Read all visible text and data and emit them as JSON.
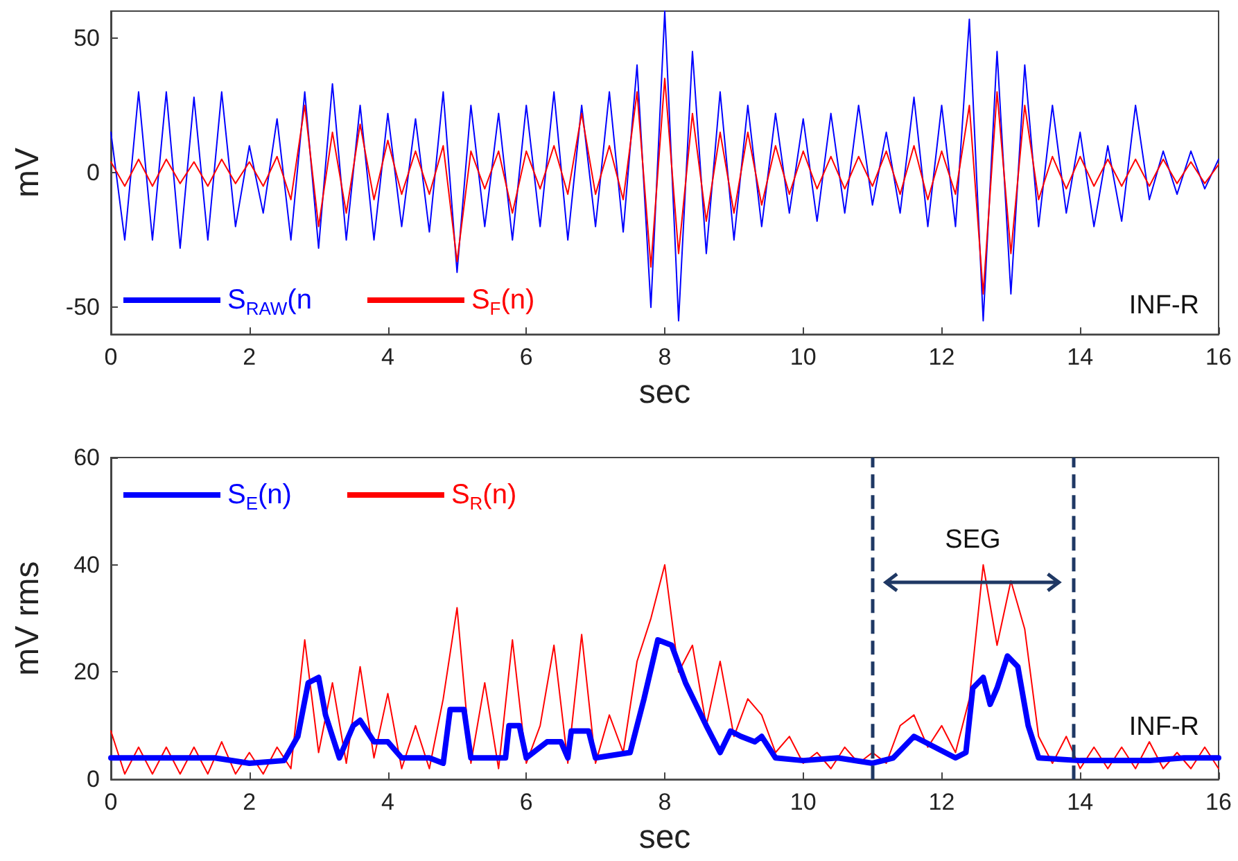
{
  "chart_data": [
    {
      "type": "line",
      "xlabel": "sec",
      "ylabel": "mV",
      "annotations": [
        "INF-R"
      ],
      "legend": "bottom left",
      "grid": false,
      "marker": "none",
      "line_style": "solid",
      "x": [
        0,
        0.2,
        0.4,
        0.6,
        0.8,
        1,
        1.2,
        1.4,
        1.6,
        1.8,
        2,
        2.2,
        2.4,
        2.6,
        2.8,
        3,
        3.2,
        3.4,
        3.6,
        3.8,
        4,
        4.2,
        4.4,
        4.6,
        4.8,
        5,
        5.2,
        5.4,
        5.6,
        5.8,
        6,
        6.2,
        6.4,
        6.6,
        6.8,
        7,
        7.2,
        7.4,
        7.6,
        7.8,
        8,
        8.2,
        8.4,
        8.6,
        8.8,
        9,
        9.2,
        9.4,
        9.6,
        9.8,
        10,
        10.2,
        10.4,
        10.6,
        10.8,
        11,
        11.2,
        11.4,
        11.6,
        11.8,
        12,
        12.2,
        12.4,
        12.6,
        12.8,
        13,
        13.2,
        13.4,
        13.6,
        13.8,
        14,
        14.2,
        14.4,
        14.6,
        14.8,
        15,
        15.2,
        15.4,
        15.6,
        15.8,
        16
      ],
      "xlim": [
        0,
        16
      ],
      "xticks": [
        0,
        2,
        4,
        6,
        8,
        10,
        12,
        14,
        16
      ],
      "ylim": [
        -60,
        60
      ],
      "yticks": [
        -50,
        0,
        50
      ],
      "series": [
        {
          "name": "S$_{RAW}$(n",
          "color": "#0000ff",
          "values": [
            15,
            -25,
            30,
            -25,
            30,
            -28,
            28,
            -25,
            30,
            -20,
            10,
            -15,
            20,
            -25,
            30,
            -28,
            33,
            -25,
            25,
            -25,
            22,
            -20,
            20,
            -22,
            30,
            -37,
            25,
            -20,
            22,
            -25,
            25,
            -20,
            30,
            -25,
            25,
            -20,
            30,
            -22,
            40,
            -50,
            60,
            -55,
            45,
            -30,
            30,
            -25,
            25,
            -20,
            22,
            -15,
            20,
            -18,
            22,
            -15,
            25,
            -12,
            15,
            -15,
            28,
            -20,
            25,
            -20,
            57,
            -55,
            45,
            -45,
            40,
            -20,
            25,
            -15,
            15,
            -20,
            10,
            -18,
            25,
            -10,
            8,
            -8,
            8,
            -6,
            5
          ]
        },
        {
          "name": "S$_{F}$(n)",
          "color": "#ff0000",
          "values": [
            4,
            -5,
            5,
            -5,
            5,
            -4,
            4,
            -5,
            5,
            -4,
            4,
            -5,
            6,
            -10,
            25,
            -20,
            15,
            -15,
            18,
            -10,
            12,
            -8,
            8,
            -8,
            10,
            -33,
            8,
            -6,
            8,
            -15,
            8,
            -6,
            10,
            -8,
            22,
            -8,
            10,
            -10,
            30,
            -35,
            35,
            -30,
            22,
            -18,
            15,
            -15,
            15,
            -12,
            10,
            -8,
            8,
            -6,
            6,
            -6,
            6,
            -5,
            8,
            -8,
            10,
            -10,
            8,
            -8,
            25,
            -45,
            30,
            -30,
            25,
            -10,
            6,
            -6,
            6,
            -5,
            5,
            -5,
            5,
            -5,
            5,
            -4,
            4,
            -4,
            3
          ]
        }
      ]
    },
    {
      "type": "line",
      "xlabel": "sec",
      "ylabel": "mV rms",
      "annotations": [
        "SEG",
        "INF-R"
      ],
      "legend": "top left",
      "grid": false,
      "marker": "none",
      "line_style": "solid",
      "x": [
        0,
        0.2,
        0.4,
        0.6,
        0.8,
        1,
        1.2,
        1.4,
        1.6,
        1.8,
        2,
        2.2,
        2.4,
        2.6,
        2.8,
        3,
        3.2,
        3.4,
        3.6,
        3.8,
        4,
        4.2,
        4.4,
        4.6,
        4.8,
        5,
        5.2,
        5.4,
        5.6,
        5.8,
        6,
        6.2,
        6.4,
        6.6,
        6.8,
        7,
        7.2,
        7.4,
        7.6,
        7.8,
        8,
        8.2,
        8.4,
        8.6,
        8.8,
        9,
        9.2,
        9.4,
        9.6,
        9.8,
        10,
        10.2,
        10.4,
        10.6,
        10.8,
        11,
        11.2,
        11.4,
        11.6,
        11.8,
        12,
        12.2,
        12.4,
        12.6,
        12.8,
        13,
        13.2,
        13.4,
        13.6,
        13.8,
        14,
        14.2,
        14.4,
        14.6,
        14.8,
        15,
        15.2,
        15.4,
        15.6,
        15.8,
        16
      ],
      "xlim": [
        0,
        16
      ],
      "xticks": [
        0,
        2,
        4,
        6,
        8,
        10,
        12,
        14,
        16
      ],
      "ylim": [
        0,
        60
      ],
      "yticks": [
        0,
        20,
        40,
        60
      ],
      "ref_lines": [
        {
          "axis": "x",
          "value": 11,
          "color": "#1f3864",
          "line_style": "dashed"
        },
        {
          "axis": "x",
          "value": 13.9,
          "color": "#1f3864",
          "line_style": "dashed"
        }
      ],
      "series": [
        {
          "name": "S$_{E}$(n)",
          "color": "#0000ff",
          "x": [
            0,
            1,
            1.5,
            2,
            2.5,
            2.7,
            2.85,
            3,
            3.1,
            3.3,
            3.5,
            3.6,
            3.8,
            4,
            4.2,
            4.6,
            4.8,
            4.9,
            5.1,
            5.2,
            5.7,
            5.75,
            5.9,
            6,
            6.3,
            6.5,
            6.6,
            6.65,
            6.9,
            7,
            7.5,
            7.7,
            7.9,
            8.1,
            8.3,
            8.6,
            8.8,
            8.95,
            9.1,
            9.3,
            9.4,
            9.6,
            10,
            10.5,
            11,
            11.3,
            11.6,
            11.9,
            12.2,
            12.35,
            12.45,
            12.6,
            12.7,
            12.8,
            12.95,
            13.1,
            13.25,
            13.4,
            14,
            14.5,
            15,
            15.5,
            16
          ],
          "values": [
            4,
            4,
            4,
            3,
            3.5,
            8,
            18,
            19,
            12,
            4,
            10,
            11,
            7,
            7,
            4,
            4,
            3,
            13,
            13,
            4,
            4,
            10,
            10,
            4,
            7,
            7,
            4,
            9,
            9,
            4,
            5,
            15,
            26,
            25,
            18,
            10,
            5,
            9,
            8,
            7,
            8,
            4,
            3.5,
            4,
            3,
            4,
            8,
            6,
            4,
            5,
            17,
            19,
            14,
            17,
            23,
            21,
            10,
            4,
            3.5,
            3.5,
            3.5,
            4,
            4
          ]
        },
        {
          "name": "S$_{R}$(n)",
          "color": "#ff0000",
          "values": [
            9,
            1,
            6,
            1,
            6,
            1,
            6,
            1,
            7,
            1,
            5,
            1,
            6,
            2,
            26,
            5,
            18,
            3,
            21,
            4,
            16,
            2,
            10,
            2,
            15,
            32,
            3,
            18,
            2,
            26,
            3,
            10,
            25,
            3,
            27,
            3,
            12,
            5,
            22,
            30,
            40,
            20,
            25,
            10,
            22,
            8,
            15,
            12,
            5,
            8,
            3,
            5,
            2,
            6,
            3,
            5,
            3,
            10,
            12,
            6,
            10,
            5,
            15,
            40,
            25,
            37,
            28,
            8,
            3,
            8,
            2,
            6,
            2,
            6,
            2,
            7,
            2,
            5,
            2,
            6,
            2
          ]
        }
      ]
    }
  ]
}
